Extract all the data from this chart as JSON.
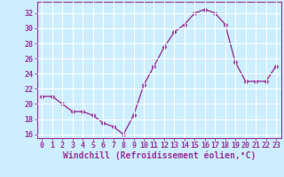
{
  "x": [
    0,
    1,
    2,
    3,
    4,
    5,
    6,
    7,
    8,
    9,
    10,
    11,
    12,
    13,
    14,
    15,
    16,
    17,
    18,
    19,
    20,
    21,
    22,
    23
  ],
  "y": [
    21.0,
    21.0,
    20.0,
    19.0,
    19.0,
    18.5,
    17.5,
    17.0,
    16.0,
    18.5,
    22.5,
    25.0,
    27.5,
    29.5,
    30.5,
    32.0,
    32.5,
    32.0,
    30.5,
    25.5,
    23.0,
    23.0,
    23.0,
    25.0
  ],
  "line_color": "#993399",
  "marker": "D",
  "marker_size": 2.5,
  "bg_color": "#cceeff",
  "grid_color": "#aaddcc",
  "xlabel": "Windchill (Refroidissement éolien,°C)",
  "ylabel": "",
  "ylim": [
    15.5,
    33.5
  ],
  "xlim": [
    -0.5,
    23.5
  ],
  "yticks": [
    16,
    18,
    20,
    22,
    24,
    26,
    28,
    30,
    32
  ],
  "xticks": [
    0,
    1,
    2,
    3,
    4,
    5,
    6,
    7,
    8,
    9,
    10,
    11,
    12,
    13,
    14,
    15,
    16,
    17,
    18,
    19,
    20,
    21,
    22,
    23
  ],
  "xlabel_fontsize": 7,
  "tick_fontsize": 6,
  "line_width": 1.0,
  "spine_color": "#993399"
}
